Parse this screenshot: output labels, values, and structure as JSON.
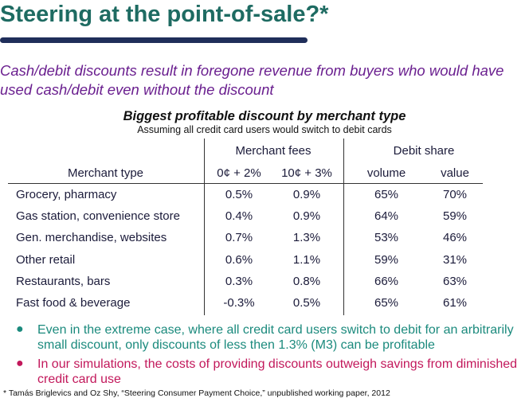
{
  "title": "Steering at the point-of-sale?*",
  "subtitle": "Cash/debit discounts result in foregone revenue from buyers who would have used cash/debit even without the discount",
  "table": {
    "heading": "Biggest profitable discount by merchant type",
    "subheading": "Assuming all credit card users would switch to debit cards",
    "group_headers": {
      "fees": "Merchant fees",
      "debit": "Debit share"
    },
    "columns": [
      "Merchant type",
      "0¢ + 2%",
      "10¢ + 3%",
      "volume",
      "value"
    ],
    "rows": [
      [
        "Grocery, pharmacy",
        "0.5%",
        "0.9%",
        "65%",
        "70%"
      ],
      [
        "Gas station, convenience store",
        "0.4%",
        "0.9%",
        "64%",
        "59%"
      ],
      [
        "Gen. merchandise, websites",
        "0.7%",
        "1.3%",
        "53%",
        "46%"
      ],
      [
        "Other retail",
        "0.6%",
        "1.1%",
        "59%",
        "31%"
      ],
      [
        "Restaurants, bars",
        "0.3%",
        "0.8%",
        "66%",
        "63%"
      ],
      [
        "Fast food & beverage",
        "-0.3%",
        "0.5%",
        "65%",
        "61%"
      ]
    ]
  },
  "bullets": [
    "Even in the extreme case, where all credit card users switch to debit for an arbitrarily small discount, only discounts of less then 1.3% (M3) can be profitable",
    "In our simulations, the costs of providing discounts outweigh savings from diminished credit card use"
  ],
  "bullet_symbol": "●",
  "footnote": "* Tamás Briglevics and Oz Shy, “Steering Consumer Payment Choice,” unpublished working paper, 2012",
  "colors": {
    "title": "#1e6b62",
    "subtitle": "#6a1f8f",
    "bullet1": "#1b8a7d",
    "bullet2": "#c2185b",
    "rule": "#1f2e5a"
  }
}
